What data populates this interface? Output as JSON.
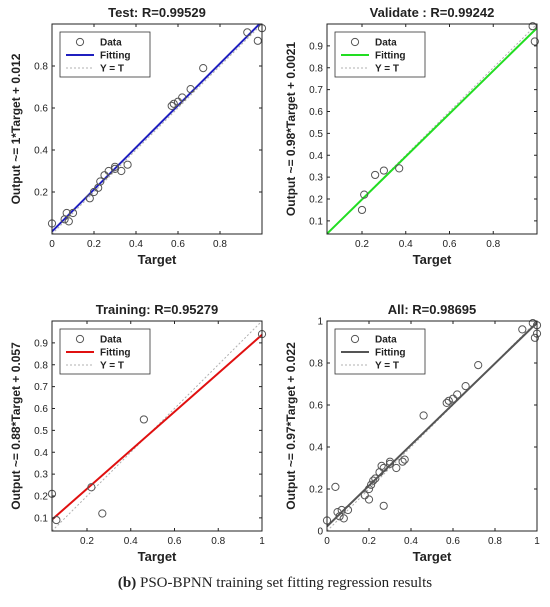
{
  "caption": {
    "label": "(b)",
    "text": "PSO-BPNN training set fitting regression results"
  },
  "chart_data": [
    {
      "type": "scatter",
      "title": "Test: R=0.99529",
      "xlabel": "Target",
      "ylabel": "Output ~= 1*Target + 0.012",
      "xlim": [
        0,
        1
      ],
      "ylim": [
        0,
        1
      ],
      "xticks": [
        "0",
        "0.2",
        "0.4",
        "0.6",
        "0.8"
      ],
      "yticks": [
        "0.2",
        "0.4",
        "0.6",
        "0.8"
      ],
      "xtick_values": [
        0,
        0.2,
        0.4,
        0.6,
        0.8
      ],
      "ytick_values": [
        0.2,
        0.4,
        0.6,
        0.8
      ],
      "legend": [
        "Data",
        "Fitting",
        "Y = T"
      ],
      "legend_position": "top-left",
      "fit_color": "#1f1fbf",
      "fit": {
        "slope": 1.0,
        "intercept": 0.012
      },
      "points": [
        [
          0.0,
          0.05
        ],
        [
          0.06,
          0.07
        ],
        [
          0.07,
          0.1
        ],
        [
          0.08,
          0.06
        ],
        [
          0.1,
          0.1
        ],
        [
          0.18,
          0.17
        ],
        [
          0.2,
          0.2
        ],
        [
          0.22,
          0.22
        ],
        [
          0.23,
          0.25
        ],
        [
          0.25,
          0.28
        ],
        [
          0.27,
          0.3
        ],
        [
          0.3,
          0.31
        ],
        [
          0.3,
          0.32
        ],
        [
          0.33,
          0.3
        ],
        [
          0.36,
          0.33
        ],
        [
          0.57,
          0.61
        ],
        [
          0.58,
          0.62
        ],
        [
          0.6,
          0.63
        ],
        [
          0.62,
          0.65
        ],
        [
          0.66,
          0.69
        ],
        [
          0.72,
          0.79
        ],
        [
          0.93,
          0.96
        ],
        [
          0.98,
          0.92
        ],
        [
          1.0,
          0.98
        ]
      ]
    },
    {
      "type": "scatter",
      "title": "Validate : R=0.99242",
      "xlabel": "Target",
      "ylabel": "Output ~= 0.98*Target + 0.0021",
      "xlim": [
        0.04,
        1.0
      ],
      "ylim": [
        0.04,
        1.0
      ],
      "xticks": [
        "0.2",
        "0.4",
        "0.6",
        "0.8"
      ],
      "yticks": [
        "0.1",
        "0.2",
        "0.3",
        "0.4",
        "0.5",
        "0.6",
        "0.7",
        "0.8",
        "0.9"
      ],
      "xtick_values": [
        0.2,
        0.4,
        0.6,
        0.8
      ],
      "ytick_values": [
        0.1,
        0.2,
        0.3,
        0.4,
        0.5,
        0.6,
        0.7,
        0.8,
        0.9
      ],
      "legend": [
        "Data",
        "Fitting",
        "Y = T"
      ],
      "legend_position": "top-left",
      "fit_color": "#22dd22",
      "fit": {
        "slope": 0.98,
        "intercept": 0.0021
      },
      "points": [
        [
          0.2,
          0.15
        ],
        [
          0.21,
          0.22
        ],
        [
          0.26,
          0.31
        ],
        [
          0.3,
          0.33
        ],
        [
          0.37,
          0.34
        ],
        [
          0.98,
          0.99
        ],
        [
          0.99,
          0.92
        ]
      ]
    },
    {
      "type": "scatter",
      "title": "Training: R=0.95279",
      "xlabel": "Target",
      "ylabel": "Output ~= 0.88*Target + 0.057",
      "xlim": [
        0.04,
        1.0
      ],
      "ylim": [
        0.04,
        1.0
      ],
      "xticks": [
        "0.2",
        "0.4",
        "0.6",
        "0.8",
        "1"
      ],
      "yticks": [
        "0.1",
        "0.2",
        "0.3",
        "0.4",
        "0.5",
        "0.6",
        "0.7",
        "0.8",
        "0.9"
      ],
      "xtick_values": [
        0.2,
        0.4,
        0.6,
        0.8,
        1.0
      ],
      "ytick_values": [
        0.1,
        0.2,
        0.3,
        0.4,
        0.5,
        0.6,
        0.7,
        0.8,
        0.9
      ],
      "legend": [
        "Data",
        "Fitting",
        "Y = T"
      ],
      "legend_position": "top-left",
      "fit_color": "#e01010",
      "fit": {
        "slope": 0.88,
        "intercept": 0.057
      },
      "points": [
        [
          0.04,
          0.21
        ],
        [
          0.06,
          0.09
        ],
        [
          0.22,
          0.24
        ],
        [
          0.27,
          0.12
        ],
        [
          0.46,
          0.55
        ],
        [
          1.0,
          0.94
        ]
      ]
    },
    {
      "type": "scatter",
      "title": "All: R=0.98695",
      "xlabel": "Target",
      "ylabel": "Output ~= 0.97*Target + 0.022",
      "xlim": [
        0,
        1
      ],
      "ylim": [
        0,
        1
      ],
      "xticks": [
        "0",
        "0.2",
        "0.4",
        "0.6",
        "0.8",
        "1"
      ],
      "yticks": [
        "0",
        "0.2",
        "0.4",
        "0.6",
        "0.8",
        "1"
      ],
      "xtick_values": [
        0,
        0.2,
        0.4,
        0.6,
        0.8,
        1.0
      ],
      "ytick_values": [
        0,
        0.2,
        0.4,
        0.6,
        0.8,
        1.0
      ],
      "legend": [
        "Data",
        "Fitting",
        "Y = T"
      ],
      "legend_position": "top-left",
      "fit_color": "#555555",
      "fit": {
        "slope": 0.97,
        "intercept": 0.022
      },
      "points": [
        [
          0.0,
          0.05
        ],
        [
          0.04,
          0.21
        ],
        [
          0.05,
          0.09
        ],
        [
          0.06,
          0.07
        ],
        [
          0.07,
          0.1
        ],
        [
          0.08,
          0.06
        ],
        [
          0.1,
          0.1
        ],
        [
          0.18,
          0.17
        ],
        [
          0.2,
          0.15
        ],
        [
          0.2,
          0.2
        ],
        [
          0.21,
          0.22
        ],
        [
          0.22,
          0.24
        ],
        [
          0.23,
          0.25
        ],
        [
          0.25,
          0.28
        ],
        [
          0.26,
          0.31
        ],
        [
          0.27,
          0.12
        ],
        [
          0.27,
          0.3
        ],
        [
          0.3,
          0.32
        ],
        [
          0.3,
          0.33
        ],
        [
          0.33,
          0.3
        ],
        [
          0.36,
          0.33
        ],
        [
          0.37,
          0.34
        ],
        [
          0.46,
          0.55
        ],
        [
          0.57,
          0.61
        ],
        [
          0.58,
          0.62
        ],
        [
          0.6,
          0.63
        ],
        [
          0.62,
          0.65
        ],
        [
          0.66,
          0.69
        ],
        [
          0.72,
          0.79
        ],
        [
          0.93,
          0.96
        ],
        [
          0.98,
          0.99
        ],
        [
          0.99,
          0.92
        ],
        [
          1.0,
          0.94
        ],
        [
          1.0,
          0.98
        ]
      ]
    }
  ]
}
